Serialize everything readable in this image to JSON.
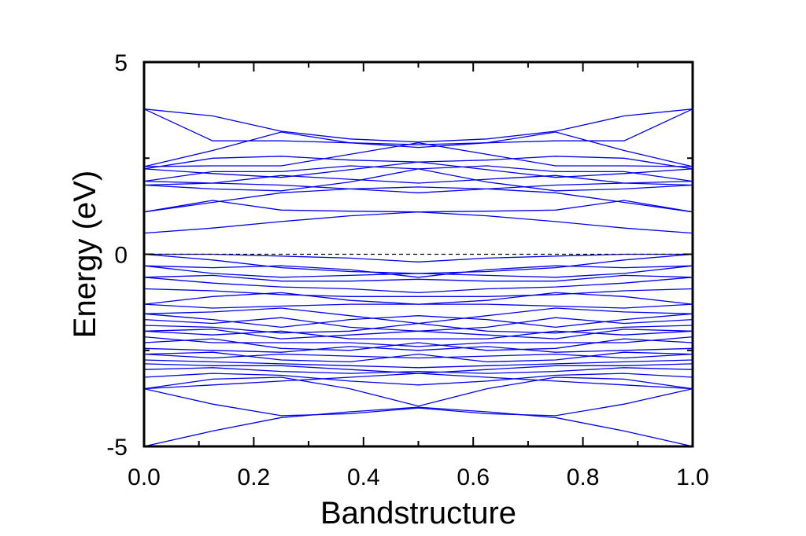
{
  "chart_data": {
    "type": "line",
    "title": "",
    "xlabel": "Bandstructure",
    "ylabel": "Energy (eV)",
    "xlim": [
      0.0,
      1.0
    ],
    "ylim": [
      -5,
      5
    ],
    "x_ticks": [
      0.0,
      0.2,
      0.4,
      0.6,
      0.8,
      1.0
    ],
    "x_tick_labels": [
      "0.0",
      "0.2",
      "0.4",
      "0.6",
      "0.8",
      "1.0"
    ],
    "y_ticks": [
      -5,
      0,
      5
    ],
    "y_tick_labels": [
      "-5",
      "0",
      "5"
    ],
    "grid": false,
    "legend": "none",
    "line_color": "#0000ee",
    "fermi_level": {
      "y": 0,
      "style": "dashed",
      "color": "#000000"
    },
    "x": [
      0.0,
      0.125,
      0.25,
      0.375,
      0.5,
      0.625,
      0.75,
      0.875,
      1.0
    ],
    "series": [
      {
        "values": [
          3.78,
          3.6,
          3.2,
          3.0,
          2.92,
          3.0,
          3.2,
          3.6,
          3.78
        ]
      },
      {
        "values": [
          3.78,
          2.95,
          2.95,
          2.9,
          2.85,
          2.9,
          2.95,
          2.95,
          3.78
        ]
      },
      {
        "values": [
          2.28,
          2.7,
          3.18,
          2.9,
          2.78,
          2.9,
          3.18,
          2.7,
          2.28
        ]
      },
      {
        "values": [
          2.28,
          2.3,
          2.3,
          2.6,
          2.9,
          2.6,
          2.3,
          2.3,
          2.28
        ]
      },
      {
        "values": [
          2.22,
          2.5,
          2.55,
          2.45,
          2.4,
          2.45,
          2.55,
          2.5,
          2.22
        ]
      },
      {
        "values": [
          2.22,
          2.1,
          2.0,
          2.2,
          2.4,
          2.2,
          2.0,
          2.1,
          2.22
        ]
      },
      {
        "values": [
          1.9,
          2.15,
          2.15,
          2.3,
          2.22,
          2.3,
          2.15,
          2.15,
          1.9
        ]
      },
      {
        "values": [
          1.9,
          1.85,
          1.8,
          1.7,
          1.6,
          1.7,
          1.8,
          1.85,
          1.9
        ]
      },
      {
        "values": [
          1.8,
          1.85,
          2.05,
          1.95,
          1.85,
          1.95,
          2.05,
          1.85,
          1.8
        ]
      },
      {
        "values": [
          1.8,
          1.7,
          1.65,
          1.88,
          2.22,
          1.88,
          1.65,
          1.7,
          1.8
        ]
      },
      {
        "values": [
          1.1,
          1.35,
          1.6,
          1.7,
          1.75,
          1.7,
          1.6,
          1.35,
          1.1
        ]
      },
      {
        "values": [
          1.1,
          1.4,
          1.15,
          1.12,
          1.1,
          1.12,
          1.15,
          1.4,
          1.1
        ]
      },
      {
        "values": [
          0.55,
          0.68,
          0.85,
          1.0,
          1.1,
          1.0,
          0.85,
          0.68,
          0.55
        ]
      },
      {
        "values": [
          0.0,
          0.0,
          -0.05,
          -0.1,
          -0.2,
          -0.1,
          -0.05,
          0.0,
          0.0
        ]
      },
      {
        "values": [
          0.0,
          -0.15,
          -0.35,
          -0.45,
          -0.5,
          -0.45,
          -0.35,
          -0.15,
          0.0
        ]
      },
      {
        "values": [
          -0.3,
          -0.35,
          -0.3,
          -0.4,
          -0.6,
          -0.4,
          -0.3,
          -0.35,
          -0.3
        ]
      },
      {
        "values": [
          -0.3,
          -0.5,
          -0.6,
          -0.55,
          -0.5,
          -0.55,
          -0.6,
          -0.5,
          -0.3
        ]
      },
      {
        "values": [
          -0.6,
          -0.55,
          -0.7,
          -0.7,
          -0.65,
          -0.7,
          -0.7,
          -0.55,
          -0.6
        ]
      },
      {
        "values": [
          -0.6,
          -0.75,
          -0.85,
          -0.9,
          -1.0,
          -0.9,
          -0.85,
          -0.75,
          -0.6
        ]
      },
      {
        "values": [
          -0.9,
          -0.95,
          -1.05,
          -1.1,
          -1.1,
          -1.1,
          -1.05,
          -0.95,
          -0.9
        ]
      },
      {
        "values": [
          -1.3,
          -1.1,
          -1.0,
          -1.2,
          -1.3,
          -1.2,
          -1.0,
          -1.1,
          -1.3
        ]
      },
      {
        "values": [
          -1.3,
          -1.4,
          -1.35,
          -1.3,
          -1.3,
          -1.3,
          -1.35,
          -1.4,
          -1.3
        ]
      },
      {
        "values": [
          -1.55,
          -1.5,
          -1.4,
          -1.6,
          -1.8,
          -1.6,
          -1.4,
          -1.5,
          -1.55
        ]
      },
      {
        "values": [
          -1.55,
          -1.7,
          -1.9,
          -1.7,
          -1.6,
          -1.7,
          -1.9,
          -1.7,
          -1.55
        ]
      },
      {
        "values": [
          -1.7,
          -1.8,
          -1.65,
          -1.9,
          -2.0,
          -1.9,
          -1.65,
          -1.8,
          -1.7
        ]
      },
      {
        "values": [
          -1.85,
          -1.9,
          -2.05,
          -2.0,
          -1.8,
          -2.0,
          -2.05,
          -1.9,
          -1.85
        ]
      },
      {
        "values": [
          -2.0,
          -2.1,
          -2.0,
          -2.2,
          -2.2,
          -2.2,
          -2.0,
          -2.1,
          -2.0
        ]
      },
      {
        "values": [
          -2.0,
          -1.95,
          -2.2,
          -2.1,
          -2.0,
          -2.1,
          -2.2,
          -1.95,
          -2.0
        ]
      },
      {
        "values": [
          -2.15,
          -2.3,
          -2.3,
          -2.3,
          -2.4,
          -2.3,
          -2.3,
          -2.3,
          -2.15
        ]
      },
      {
        "values": [
          -2.3,
          -2.2,
          -2.45,
          -2.5,
          -2.3,
          -2.5,
          -2.45,
          -2.2,
          -2.3
        ]
      },
      {
        "values": [
          -2.45,
          -2.5,
          -2.55,
          -2.4,
          -2.5,
          -2.4,
          -2.55,
          -2.5,
          -2.45
        ]
      },
      {
        "values": [
          -2.6,
          -2.7,
          -2.6,
          -2.65,
          -2.7,
          -2.65,
          -2.6,
          -2.7,
          -2.6
        ]
      },
      {
        "values": [
          -2.6,
          -2.55,
          -2.75,
          -2.8,
          -2.6,
          -2.8,
          -2.75,
          -2.55,
          -2.6
        ]
      },
      {
        "values": [
          -2.75,
          -2.8,
          -2.85,
          -2.9,
          -2.95,
          -2.9,
          -2.85,
          -2.8,
          -2.75
        ]
      },
      {
        "values": [
          -2.85,
          -2.9,
          -2.9,
          -3.0,
          -3.1,
          -3.0,
          -2.9,
          -2.9,
          -2.85
        ]
      },
      {
        "values": [
          -3.0,
          -2.95,
          -3.05,
          -3.1,
          -3.05,
          -3.1,
          -3.05,
          -2.95,
          -3.0
        ]
      },
      {
        "values": [
          -3.2,
          -3.1,
          -3.15,
          -3.3,
          -3.4,
          -3.3,
          -3.15,
          -3.1,
          -3.2
        ]
      },
      {
        "values": [
          -3.5,
          -3.4,
          -3.3,
          -3.2,
          -3.1,
          -3.2,
          -3.3,
          -3.4,
          -3.5
        ]
      },
      {
        "values": [
          -3.5,
          -3.9,
          -4.2,
          -4.15,
          -4.0,
          -4.15,
          -4.2,
          -3.9,
          -3.5
        ]
      },
      {
        "values": [
          -3.5,
          -3.25,
          -3.2,
          -3.5,
          -3.95,
          -3.5,
          -3.2,
          -3.25,
          -3.5
        ]
      },
      {
        "values": [
          -5.0,
          -4.6,
          -4.25,
          -4.1,
          -3.98,
          -4.1,
          -4.25,
          -4.6,
          -5.0
        ]
      }
    ]
  }
}
